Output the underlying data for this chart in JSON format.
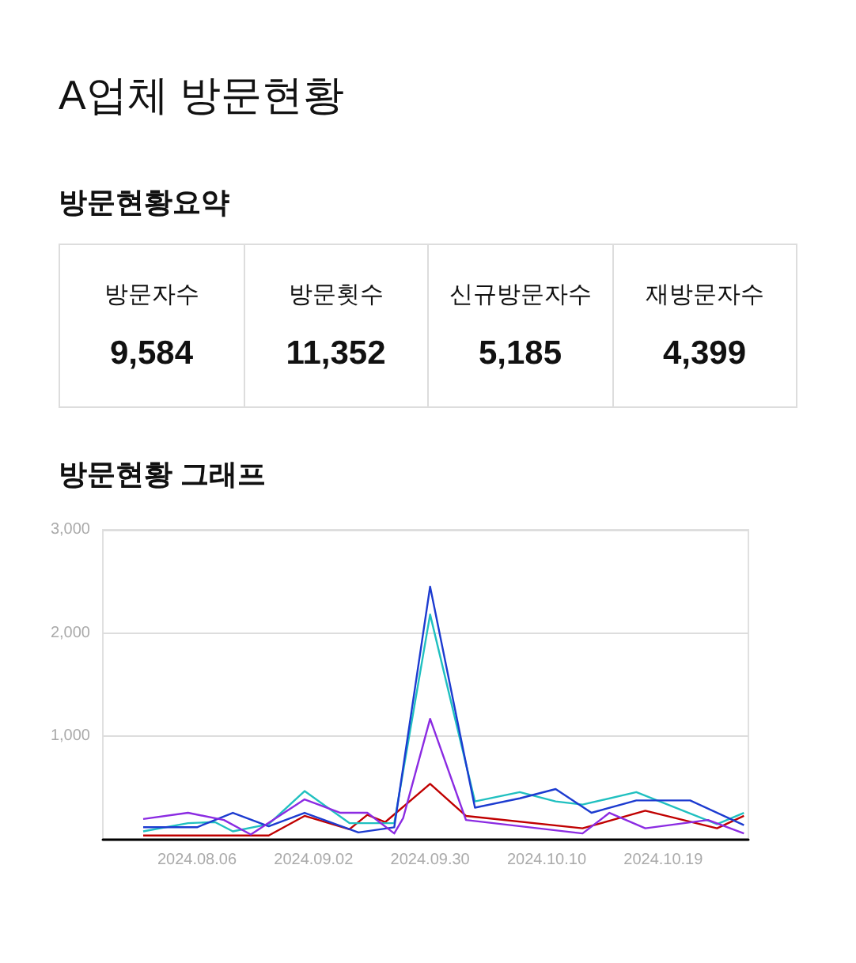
{
  "chart_data": [
    {
      "type": "other",
      "title": "A업체 방문현황",
      "subtitle": "방문현황요약",
      "categories": [
        "방문자수",
        "방문횟수",
        "신규방문자수",
        "재방문자수"
      ],
      "value_labels": [
        "9,584",
        "11,352",
        "5,185",
        "4,399"
      ]
    },
    {
      "type": "line",
      "title": "방문현황 그래프",
      "categories": [
        null,
        null,
        null,
        null,
        null,
        null,
        null,
        null,
        null,
        null,
        "2024.08.06",
        null,
        null,
        null,
        null,
        null,
        null,
        null,
        null,
        null,
        null,
        null,
        null,
        "2024.09.02",
        null,
        null,
        null,
        null,
        null,
        null,
        null,
        null,
        null,
        null,
        null,
        null,
        "2024.09.30",
        null,
        null,
        null,
        null,
        null,
        null,
        null,
        null,
        null,
        null,
        null,
        null,
        "2024.10.10",
        null,
        null,
        null,
        null,
        null,
        null,
        null,
        null,
        null,
        null,
        null,
        null,
        "2024.10.19",
        null,
        null,
        null,
        null,
        null,
        null,
        null,
        null,
        null
      ],
      "ylim": [
        0,
        3000
      ],
      "yticks": [
        {
          "value": 0,
          "label": null
        },
        {
          "value": 1000,
          "label": "1,000"
        },
        {
          "value": 2000,
          "label": "2,000"
        },
        {
          "value": 3000,
          "label": "3,000"
        }
      ],
      "grid": "y",
      "marker": "none",
      "line_style": "solid",
      "series": [
        {
          "color": "#c00000",
          "values": [
            null,
            null,
            null,
            null,
            40,
            null,
            null,
            null,
            null,
            null,
            null,
            null,
            null,
            null,
            null,
            null,
            null,
            null,
            40,
            null,
            null,
            null,
            230,
            null,
            null,
            null,
            null,
            100,
            null,
            240,
            null,
            170,
            null,
            null,
            null,
            null,
            540,
            null,
            null,
            null,
            230,
            null,
            null,
            null,
            null,
            null,
            null,
            null,
            null,
            null,
            null,
            null,
            null,
            110,
            null,
            null,
            null,
            null,
            null,
            null,
            280,
            null,
            null,
            null,
            null,
            null,
            null,
            null,
            110,
            null,
            null,
            230
          ]
        },
        {
          "color": "#20c0c0",
          "values": [
            null,
            null,
            null,
            null,
            80,
            null,
            null,
            null,
            null,
            160,
            null,
            null,
            170,
            null,
            80,
            null,
            null,
            null,
            150,
            null,
            null,
            null,
            470,
            null,
            null,
            null,
            null,
            160,
            null,
            null,
            null,
            null,
            160,
            null,
            null,
            null,
            2180,
            null,
            null,
            null,
            null,
            370,
            null,
            null,
            null,
            null,
            460,
            null,
            null,
            null,
            370,
            null,
            null,
            340,
            null,
            null,
            null,
            null,
            null,
            460,
            null,
            null,
            null,
            null,
            null,
            null,
            null,
            null,
            150,
            null,
            null,
            260
          ]
        },
        {
          "color": "#1c3bd0",
          "values": [
            null,
            null,
            null,
            null,
            120,
            null,
            null,
            null,
            null,
            null,
            120,
            null,
            null,
            null,
            260,
            null,
            null,
            null,
            130,
            null,
            null,
            null,
            260,
            null,
            null,
            null,
            null,
            null,
            70,
            null,
            null,
            null,
            120,
            null,
            null,
            null,
            2450,
            null,
            null,
            null,
            null,
            310,
            null,
            null,
            null,
            null,
            400,
            null,
            null,
            null,
            490,
            null,
            null,
            null,
            260,
            null,
            null,
            null,
            null,
            380,
            null,
            null,
            null,
            null,
            null,
            380,
            null,
            null,
            null,
            null,
            null,
            140
          ]
        },
        {
          "color": "#8b2be2",
          "values": [
            null,
            null,
            null,
            null,
            200,
            null,
            null,
            null,
            null,
            260,
            null,
            null,
            null,
            190,
            null,
            null,
            50,
            null,
            null,
            null,
            null,
            null,
            390,
            null,
            null,
            null,
            260,
            null,
            null,
            260,
            null,
            null,
            60,
            210,
            null,
            null,
            1170,
            null,
            null,
            null,
            190,
            null,
            null,
            null,
            null,
            null,
            null,
            null,
            null,
            null,
            null,
            null,
            null,
            60,
            null,
            null,
            260,
            null,
            null,
            null,
            110,
            null,
            null,
            null,
            null,
            null,
            null,
            190,
            null,
            null,
            null,
            60
          ]
        }
      ]
    }
  ]
}
